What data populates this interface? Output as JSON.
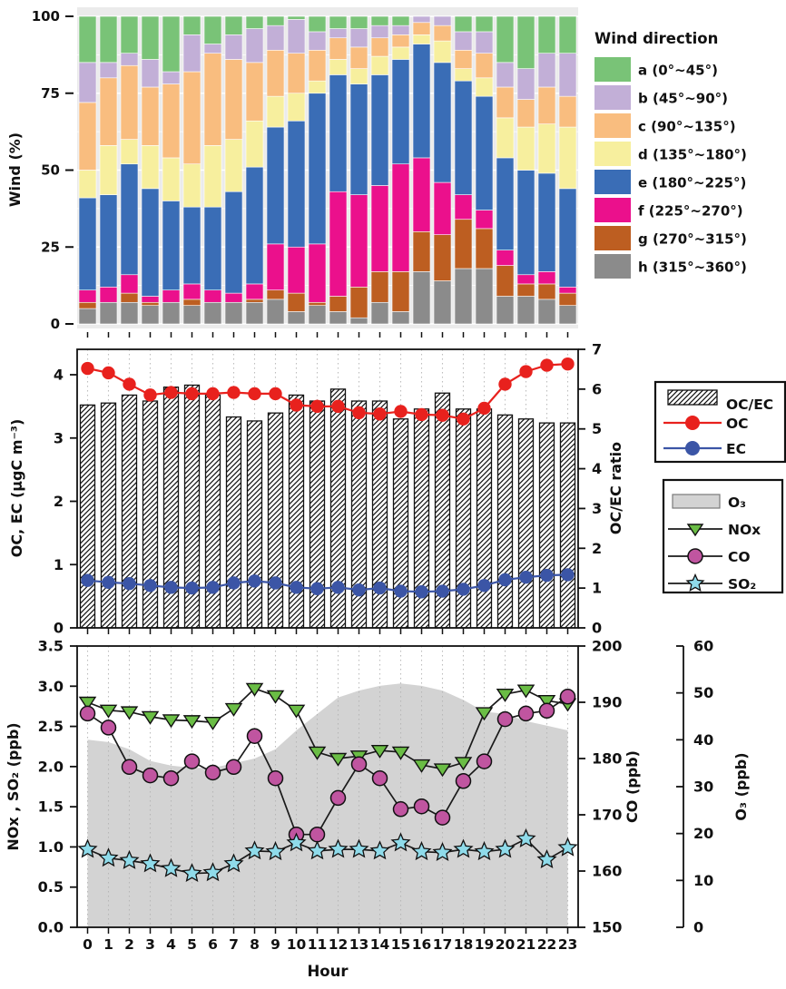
{
  "figure": {
    "description": "Diurnal variation multi-panel air-quality figure",
    "hours": [
      0,
      1,
      2,
      3,
      4,
      5,
      6,
      7,
      8,
      9,
      10,
      11,
      12,
      13,
      14,
      15,
      16,
      17,
      18,
      19,
      20,
      21,
      22,
      23
    ],
    "xlabel": "Hour"
  },
  "chart_data": [
    {
      "type": "bar",
      "stacked": true,
      "ylabel": "Wind (%)",
      "yticks": [
        0,
        25,
        50,
        75,
        100
      ],
      "ylim": [
        0,
        100
      ],
      "legend_title": "Wind direction",
      "legend_position": "right",
      "grid": "white-on-gray",
      "panel_bg": "#ebebeb",
      "stack_order_bottom_to_top": [
        "h",
        "g",
        "f",
        "e",
        "d",
        "c",
        "b",
        "a"
      ],
      "series": [
        {
          "key": "a",
          "label": "a (0°~45°)",
          "color": "#79c377",
          "values": [
            15,
            15,
            12,
            14,
            18,
            6,
            9,
            6,
            4,
            3,
            1,
            5,
            4,
            4,
            3,
            3,
            0,
            0,
            5,
            5,
            15,
            17,
            12,
            12
          ]
        },
        {
          "key": "b",
          "label": "b (45°~90°)",
          "color": "#c2afd7",
          "values": [
            13,
            5,
            4,
            9,
            4,
            12,
            3,
            8,
            11,
            8,
            11,
            6,
            3,
            6,
            4,
            3,
            2,
            3,
            6,
            7,
            8,
            10,
            11,
            14
          ]
        },
        {
          "key": "c",
          "label": "c (90°~135°)",
          "color": "#f9bd7f",
          "values": [
            22,
            22,
            24,
            19,
            24,
            30,
            30,
            26,
            19,
            15,
            13,
            10,
            7,
            7,
            6,
            4,
            4,
            5,
            6,
            8,
            10,
            9,
            12,
            10
          ]
        },
        {
          "key": "d",
          "label": "d (135°~180°)",
          "color": "#f7ef9e",
          "values": [
            9,
            16,
            8,
            14,
            14,
            14,
            20,
            17,
            15,
            10,
            9,
            4,
            5,
            5,
            6,
            4,
            3,
            7,
            4,
            6,
            13,
            14,
            16,
            20
          ]
        },
        {
          "key": "e",
          "label": "e (180°~225°)",
          "color": "#3a6db6",
          "values": [
            30,
            30,
            36,
            35,
            29,
            25,
            27,
            33,
            38,
            38,
            41,
            49,
            38,
            36,
            36,
            34,
            37,
            39,
            37,
            37,
            30,
            34,
            32,
            32
          ]
        },
        {
          "key": "f",
          "label": "f (225°~270°)",
          "color": "#eb108c",
          "values": [
            4,
            5,
            6,
            2,
            4,
            5,
            4,
            3,
            5,
            15,
            15,
            19,
            34,
            30,
            28,
            35,
            24,
            17,
            8,
            6,
            5,
            3,
            4,
            2
          ]
        },
        {
          "key": "g",
          "label": "g (270°~315°)",
          "color": "#bd5e21",
          "values": [
            2,
            0,
            3,
            1,
            0,
            2,
            0,
            0,
            1,
            3,
            6,
            1,
            5,
            10,
            10,
            13,
            13,
            15,
            16,
            13,
            10,
            4,
            5,
            4
          ]
        },
        {
          "key": "h",
          "label": "h (315°~360°)",
          "color": "#8b8b8b",
          "values": [
            5,
            7,
            7,
            6,
            7,
            6,
            7,
            7,
            7,
            8,
            4,
            6,
            4,
            2,
            7,
            4,
            17,
            14,
            18,
            18,
            9,
            9,
            8,
            6
          ]
        }
      ]
    },
    {
      "type": "bar+line",
      "ylabel_left": "OC, EC (μgC m⁻³)",
      "yticks_left": [
        0,
        1,
        2,
        3,
        4
      ],
      "ylim_left": [
        0,
        4.4
      ],
      "ylabel_right": "OC/EC ratio",
      "yticks_right": [
        0,
        1,
        2,
        3,
        4,
        5,
        6,
        7
      ],
      "ylim_right": [
        0,
        7
      ],
      "grid": "dotted-vertical",
      "bars": {
        "label": "OC/EC",
        "axis": "right",
        "fill": "hatch",
        "values": [
          5.6,
          5.65,
          5.85,
          5.7,
          6.05,
          6.1,
          5.85,
          5.3,
          5.2,
          5.4,
          5.85,
          5.7,
          6.0,
          5.7,
          5.7,
          5.25,
          5.5,
          5.9,
          5.5,
          5.5,
          5.35,
          5.25,
          5.15,
          5.15
        ]
      },
      "lines": [
        {
          "label": "OC",
          "color": "#e8211d",
          "marker": "circle",
          "axis": "left",
          "values": [
            4.1,
            4.03,
            3.85,
            3.68,
            3.72,
            3.7,
            3.7,
            3.72,
            3.7,
            3.7,
            3.52,
            3.5,
            3.5,
            3.4,
            3.38,
            3.42,
            3.37,
            3.36,
            3.3,
            3.47,
            3.85,
            4.05,
            4.15,
            4.17
          ]
        },
        {
          "label": "EC",
          "color": "#3b55a6",
          "marker": "circle",
          "axis": "left",
          "values": [
            0.75,
            0.72,
            0.7,
            0.67,
            0.64,
            0.63,
            0.64,
            0.71,
            0.74,
            0.71,
            0.64,
            0.62,
            0.64,
            0.6,
            0.63,
            0.58,
            0.57,
            0.58,
            0.61,
            0.67,
            0.76,
            0.8,
            0.83,
            0.84
          ]
        }
      ]
    },
    {
      "type": "line+area",
      "ylabel_left": "NOx , SO₂ (ppb)",
      "yticks_left": [
        "0.0",
        "0.5",
        "1.0",
        "1.5",
        "2.0",
        "2.5",
        "3.0",
        "3.5"
      ],
      "ylim_left": [
        0,
        3.5
      ],
      "ylabel_co": "CO (ppb)",
      "co_ticks": [
        150,
        160,
        170,
        180,
        190,
        200
      ],
      "co_lim": [
        150,
        200
      ],
      "ylabel_o3": "O₃ (ppb)",
      "o3_ticks": [
        0,
        10,
        20,
        30,
        40,
        50,
        60
      ],
      "o3_lim": [
        0,
        60
      ],
      "xlabel": "Hour",
      "xticks": [
        0,
        1,
        2,
        3,
        4,
        5,
        6,
        7,
        8,
        9,
        10,
        11,
        12,
        13,
        14,
        15,
        16,
        17,
        18,
        19,
        20,
        21,
        22,
        23
      ],
      "grid": "dotted-vertical",
      "area": {
        "label": "O₃",
        "color": "#d3d3d3",
        "axis": "o3",
        "values": [
          40,
          39.5,
          38,
          35.5,
          34.5,
          34,
          34,
          35,
          36,
          38,
          42,
          45.5,
          49,
          50.5,
          51.5,
          52,
          51.5,
          50.5,
          48.5,
          46,
          45.5,
          44,
          43,
          42
        ]
      },
      "lines": [
        {
          "label": "NOx",
          "marker": "triangle-down",
          "color": "#6abd45",
          "axis": "left",
          "values": [
            2.8,
            2.7,
            2.68,
            2.62,
            2.58,
            2.57,
            2.55,
            2.72,
            2.97,
            2.88,
            2.7,
            2.18,
            2.1,
            2.13,
            2.2,
            2.18,
            2.02,
            1.97,
            2.05,
            2.67,
            2.9,
            2.95,
            2.82,
            2.78
          ]
        },
        {
          "label": "CO",
          "marker": "circle",
          "color": "#c055a0",
          "axis": "co",
          "values": [
            188,
            185.5,
            178.5,
            177,
            176.5,
            179.5,
            177.5,
            178.5,
            184,
            176.5,
            166.5,
            166.5,
            173,
            179,
            176.5,
            171,
            171.5,
            169.5,
            176,
            179.5,
            187,
            188,
            188.5,
            191
          ]
        },
        {
          "label": "SO₂",
          "marker": "star",
          "color": "#8fdbea",
          "axis": "left",
          "values": [
            0.97,
            0.86,
            0.83,
            0.79,
            0.73,
            0.67,
            0.68,
            0.79,
            0.95,
            0.94,
            1.05,
            0.95,
            0.97,
            0.97,
            0.95,
            1.05,
            0.94,
            0.93,
            0.97,
            0.94,
            0.97,
            1.1,
            0.84,
            0.99
          ]
        }
      ]
    }
  ]
}
